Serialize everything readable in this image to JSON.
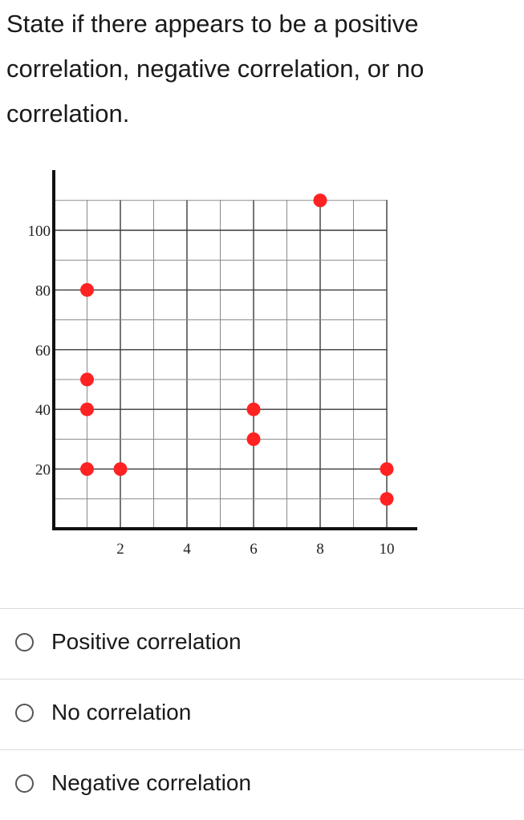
{
  "question": {
    "text": "State if there appears to be a positive correlation, negative correlation, or no correlation."
  },
  "chart_data": {
    "type": "scatter",
    "title": "",
    "xlabel": "",
    "ylabel": "",
    "xlim": [
      0,
      11
    ],
    "ylim": [
      0,
      110
    ],
    "grid": true,
    "x_tick_labels": [
      {
        "value": 2,
        "label": "2"
      },
      {
        "value": 4,
        "label": "4"
      },
      {
        "value": 6,
        "label": "6"
      },
      {
        "value": 8,
        "label": "8"
      },
      {
        "value": 10,
        "label": "10"
      }
    ],
    "y_tick_labels": [
      {
        "value": 20,
        "label": "20"
      },
      {
        "value": 40,
        "label": "40"
      },
      {
        "value": 60,
        "label": "60"
      },
      {
        "value": 80,
        "label": "80"
      },
      {
        "value": 100,
        "label": "100"
      }
    ],
    "marker_color": "#ff2222",
    "points": [
      {
        "x": 1,
        "y": 80
      },
      {
        "x": 1,
        "y": 50
      },
      {
        "x": 1,
        "y": 40
      },
      {
        "x": 1,
        "y": 20
      },
      {
        "x": 2,
        "y": 20
      },
      {
        "x": 6,
        "y": 40
      },
      {
        "x": 6,
        "y": 30
      },
      {
        "x": 8,
        "y": 110
      },
      {
        "x": 10,
        "y": 20
      },
      {
        "x": 10,
        "y": 10
      }
    ]
  },
  "options": [
    {
      "label": "Positive correlation",
      "selected": false
    },
    {
      "label": "No correlation",
      "selected": false
    },
    {
      "label": "Negative correlation",
      "selected": false
    }
  ]
}
